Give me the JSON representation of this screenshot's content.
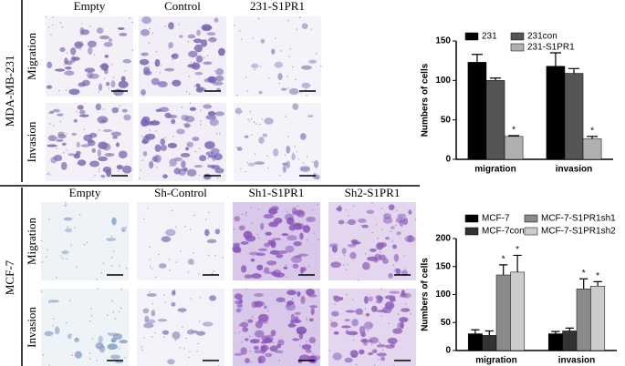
{
  "panels": [
    {
      "label": "MDA-MB-231",
      "rows": [
        "Migration",
        "Invasion"
      ],
      "columns": [
        "Empty",
        "Control",
        "231-S1PR1"
      ]
    },
    {
      "label": "MCF-7",
      "rows": [
        "Migration",
        "Invasion"
      ],
      "columns": [
        "Empty",
        "Sh-Control",
        "Sh1-S1PR1",
        "Sh2-S1PR1"
      ]
    }
  ],
  "chart_data": [
    {
      "type": "bar",
      "ylabel": "Numbers of cells",
      "categories": [
        "migration",
        "invasion"
      ],
      "ylim": [
        0,
        150
      ],
      "yticks": [
        0,
        50,
        100,
        150
      ],
      "series": [
        {
          "name": "231",
          "color": "#000000",
          "values": [
            123,
            118
          ],
          "errors": [
            10,
            17
          ]
        },
        {
          "name": "231con",
          "color": "#555555",
          "values": [
            100,
            109
          ],
          "errors": [
            3,
            6
          ]
        },
        {
          "name": "231-S1PR1",
          "color": "#b0b0b0",
          "values": [
            29,
            26
          ],
          "errors": [
            1,
            3
          ],
          "significance": [
            "*",
            "*"
          ]
        }
      ]
    },
    {
      "type": "bar",
      "ylabel": "Numbers of cells",
      "categories": [
        "migration",
        "invasion"
      ],
      "ylim": [
        0,
        200
      ],
      "yticks": [
        0,
        50,
        100,
        150,
        200
      ],
      "series": [
        {
          "name": "MCF-7",
          "color": "#000000",
          "values": [
            30,
            30
          ],
          "errors": [
            7,
            4
          ]
        },
        {
          "name": "MCF-7con",
          "color": "#333333",
          "values": [
            27,
            35
          ],
          "errors": [
            8,
            5
          ]
        },
        {
          "name": "MCF-7-S1PR1sh1",
          "color": "#8a8a8a",
          "values": [
            135,
            110
          ],
          "errors": [
            18,
            18
          ],
          "significance": [
            "*",
            "*"
          ]
        },
        {
          "name": "MCF-7-S1PR1sh2",
          "color": "#cccccc",
          "values": [
            140,
            115
          ],
          "errors": [
            30,
            8
          ],
          "significance": [
            "*",
            "*"
          ]
        }
      ]
    }
  ]
}
